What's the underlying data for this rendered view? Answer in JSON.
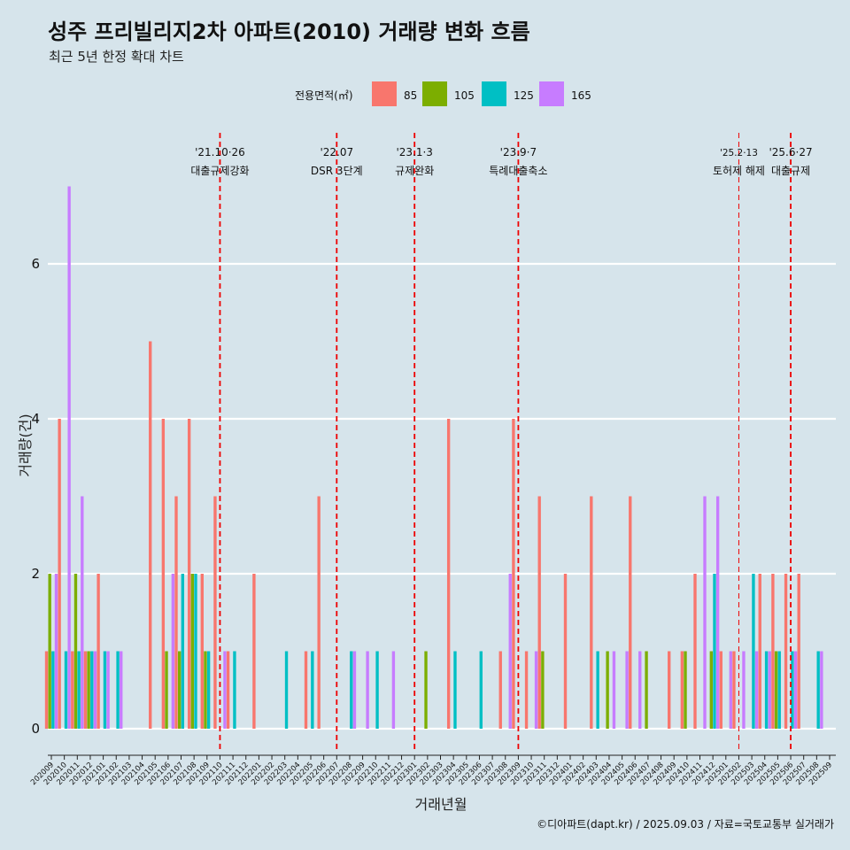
{
  "chart_data": {
    "type": "bar",
    "title": "성주 프리빌리지2차 아파트(2010) 거래량 변화 흐름",
    "subtitle": "최근 5년 한정 확대 차트",
    "xlabel": "거래년월",
    "ylabel": "거래량(건)",
    "yticks": [
      0,
      2,
      4,
      6
    ],
    "ylim": [
      -0.3,
      7.45
    ],
    "grid": "horizontal",
    "legend": {
      "title": "전용면적(㎡)",
      "position": "top",
      "entries": [
        {
          "name": "85",
          "color": "#f8766d"
        },
        {
          "name": "105",
          "color": "#7cae00"
        },
        {
          "name": "125",
          "color": "#00bfc4"
        },
        {
          "name": "165",
          "color": "#c77cff"
        }
      ]
    },
    "categories": [
      "202009",
      "202010",
      "202011",
      "202012",
      "202101",
      "202102",
      "202103",
      "202104",
      "202105",
      "202106",
      "202107",
      "202108",
      "202109",
      "202110",
      "202111",
      "202112",
      "202201",
      "202202",
      "202203",
      "202204",
      "202205",
      "202206",
      "202207",
      "202208",
      "202209",
      "202210",
      "202211",
      "202212",
      "202301",
      "202302",
      "202303",
      "202304",
      "202305",
      "202306",
      "202307",
      "202308",
      "202309",
      "202310",
      "202311",
      "202312",
      "202401",
      "202402",
      "202403",
      "202404",
      "202405",
      "202406",
      "202407",
      "202408",
      "202409",
      "202410",
      "202411",
      "202412",
      "202501",
      "202502",
      "202503",
      "202504",
      "202505",
      "202506",
      "202507",
      "202508",
      "202509"
    ],
    "series": [
      {
        "name": "85",
        "values": [
          1,
          4,
          1,
          1,
          2,
          0,
          0,
          0,
          5,
          4,
          3,
          4,
          2,
          3,
          1,
          0,
          2,
          0,
          0,
          0,
          1,
          3,
          0,
          0,
          0,
          0,
          0,
          0,
          0,
          0,
          0,
          4,
          0,
          0,
          0,
          1,
          4,
          1,
          3,
          0,
          2,
          0,
          3,
          0,
          0,
          3,
          0,
          0,
          1,
          1,
          2,
          0,
          1,
          1,
          0,
          2,
          2,
          2,
          2,
          0,
          0
        ]
      },
      {
        "name": "105",
        "values": [
          2,
          0,
          2,
          1,
          0,
          0,
          0,
          0,
          0,
          1,
          1,
          2,
          1,
          0,
          0,
          0,
          0,
          0,
          0,
          0,
          0,
          0,
          0,
          0,
          0,
          0,
          0,
          0,
          0,
          1,
          0,
          0,
          0,
          0,
          0,
          0,
          0,
          0,
          1,
          0,
          0,
          0,
          0,
          1,
          0,
          0,
          1,
          0,
          0,
          1,
          0,
          1,
          0,
          0,
          0,
          0,
          1,
          0,
          0,
          0,
          0
        ]
      },
      {
        "name": "125",
        "values": [
          1,
          1,
          1,
          1,
          1,
          1,
          0,
          0,
          0,
          0,
          2,
          2,
          1,
          0,
          1,
          0,
          0,
          0,
          1,
          0,
          1,
          0,
          0,
          1,
          0,
          1,
          0,
          0,
          0,
          0,
          0,
          1,
          0,
          1,
          0,
          0,
          0,
          0,
          0,
          0,
          0,
          0,
          1,
          0,
          0,
          0,
          0,
          0,
          0,
          0,
          0,
          2,
          0,
          0,
          2,
          1,
          1,
          1,
          0,
          1,
          0
        ]
      },
      {
        "name": "165",
        "values": [
          2,
          7,
          3,
          1,
          1,
          1,
          0,
          0,
          0,
          2,
          0,
          0,
          0,
          1,
          0,
          0,
          0,
          0,
          0,
          0,
          0,
          0,
          0,
          1,
          1,
          0,
          1,
          0,
          0,
          0,
          0,
          0,
          0,
          0,
          0,
          2,
          0,
          1,
          0,
          0,
          0,
          0,
          0,
          1,
          1,
          1,
          0,
          0,
          0,
          0,
          3,
          3,
          1,
          1,
          1,
          1,
          0,
          1,
          0,
          1,
          0
        ]
      }
    ],
    "annotations": [
      {
        "at": "202110",
        "date": "'21.10·26",
        "label": "대출규제강화"
      },
      {
        "at": "202207",
        "date": "'22.07",
        "label": "DSR 3단계"
      },
      {
        "at": "202301",
        "date": "'23.1·3",
        "label": "규제완화"
      },
      {
        "at": "202309",
        "date": "'23.9·7",
        "label": "특례대출축소"
      },
      {
        "at": "202502",
        "date": "'25.2·13",
        "label": "토허제 해제"
      },
      {
        "at": "202506",
        "date": "'25.6·27",
        "label": "대출규제"
      }
    ],
    "annotation_line_color": "#ee0000"
  },
  "caption": "©디아파트(dapt.kr) / 2025.09.03 / 자료=국토교통부 실거래가"
}
